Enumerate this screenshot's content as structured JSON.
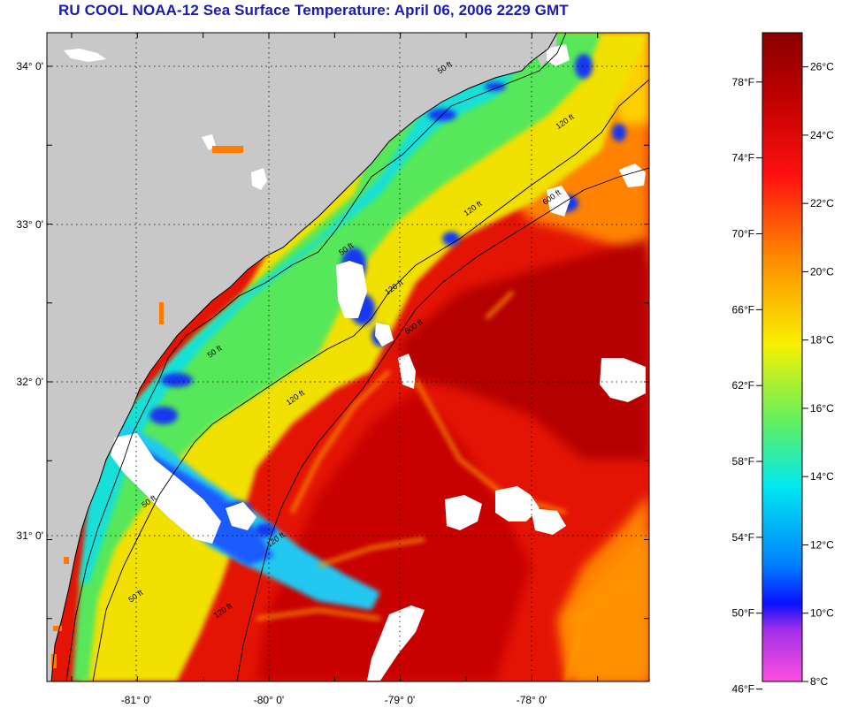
{
  "title": "RU COOL  NOAA-12  Sea Surface Temperature:  April 06, 2006 2229 GMT",
  "map": {
    "lat_ticks": [
      "34° 0'",
      "33° 0'",
      "32° 0'",
      "31° 0'"
    ],
    "lon_ticks": [
      "-81° 0'",
      "-80° 0'",
      "-79° 0'",
      "-78° 0'"
    ],
    "contours": [
      "50 ft",
      "120 ft",
      "600 ft"
    ],
    "contour_instances": [
      {
        "text": "50 ft",
        "lon": -78.7,
        "lat": 33.95
      },
      {
        "text": "120 ft",
        "lon": -77.8,
        "lat": 33.6
      },
      {
        "text": "600 ft",
        "lon": -77.9,
        "lat": 33.12
      },
      {
        "text": "120 ft",
        "lon": -78.5,
        "lat": 33.05
      },
      {
        "text": "50 ft",
        "lon": -79.45,
        "lat": 32.8
      },
      {
        "text": "120 ft",
        "lon": -79.1,
        "lat": 32.55
      },
      {
        "text": "600 ft",
        "lon": -78.95,
        "lat": 32.3
      },
      {
        "text": "50 ft",
        "lon": -80.45,
        "lat": 32.15
      },
      {
        "text": "120 ft",
        "lon": -79.85,
        "lat": 31.85
      },
      {
        "text": "50 ft",
        "lon": -80.95,
        "lat": 31.2
      },
      {
        "text": "120 ft",
        "lon": -80.0,
        "lat": 30.95
      },
      {
        "text": "50 ft",
        "lon": -81.05,
        "lat": 30.6
      },
      {
        "text": "120 ft",
        "lon": -80.4,
        "lat": 30.5
      }
    ]
  },
  "colorbar": {
    "fahrenheit_labels": [
      "78°F",
      "74°F",
      "70°F",
      "66°F",
      "62°F",
      "58°F",
      "54°F",
      "50°F",
      "46°F"
    ],
    "celsius_labels": [
      "26°C",
      "24°C",
      "22°C",
      "20°C",
      "18°C",
      "16°C",
      "14°C",
      "12°C",
      "10°C",
      "8°C"
    ],
    "range_celsius": [
      8,
      27
    ],
    "colors": {
      "magenta": "#ff4fe0",
      "purple": "#a030e8",
      "blue": "#0a10ff",
      "cyan": "#00e8f0",
      "green": "#60f060",
      "yellow": "#f8f000",
      "orange": "#ff8c00",
      "red": "#ff1010",
      "dark_red": "#8a0000"
    }
  },
  "colors": {
    "land": "#c8c8c8",
    "title": "#1b1bb0",
    "cloud": "#ffffff"
  }
}
